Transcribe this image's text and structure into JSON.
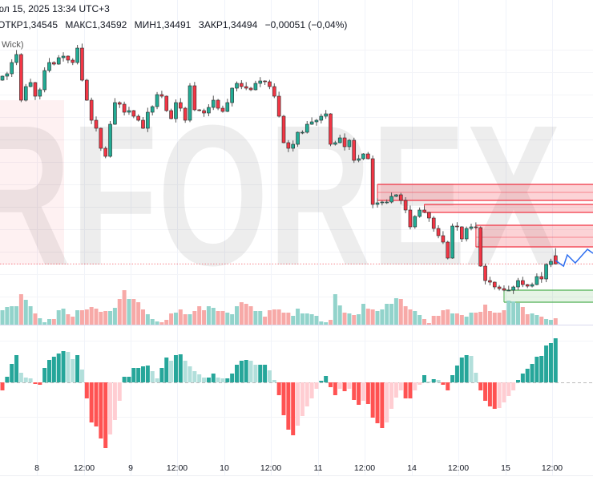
{
  "header": {
    "datetime": "юл 15, 2025 13:34 UTC+3",
    "ohlc": {
      "open": "ОТКР1,34545",
      "high": "МАКС1,34592",
      "low": "МИН1,34491",
      "close": "ЗАКР1,34494",
      "change": "−0,00051 (−0,04%)"
    },
    "indicator_label": "Wick)"
  },
  "watermark": "RFOREX",
  "colors": {
    "up": "#22ab94",
    "down": "#f23645",
    "vol_up": "#92d3cb",
    "vol_down": "#f7a9a7",
    "osc_up_strong": "#26a69a",
    "osc_up_weak": "#b2dfdb",
    "osc_down_strong": "#ff5252",
    "osc_down_weak": "#ffcdd2",
    "zone_supply": "#f23645",
    "zone_demand": "#4caf50",
    "forecast": "#2f6ff0"
  },
  "x_axis": {
    "labels": [
      "8",
      "12:00",
      "9",
      "12:00",
      "10",
      "12:00",
      "11",
      "12:00",
      "14",
      "12:00",
      "15",
      "12:00"
    ]
  },
  "chart_data": {
    "type": "candlestick",
    "first_open": 1.3564,
    "last_candle": {
      "open": 1.34545,
      "high": 1.34592,
      "low": 1.34491,
      "close": 1.34494
    },
    "current_price": 1.34494,
    "closes": [
      1.35665,
      1.3568,
      1.3575,
      1.358,
      1.35515,
      1.356,
      1.35625,
      1.3554,
      1.3558,
      1.357,
      1.3575,
      1.3574,
      1.3578,
      1.3579,
      1.35765,
      1.3575,
      1.3584,
      1.3564,
      1.35515,
      1.3539,
      1.3534,
      1.35215,
      1.35165,
      1.35365,
      1.355,
      1.3549,
      1.3544,
      1.3545,
      1.35415,
      1.3539,
      1.3534,
      1.3544,
      1.35475,
      1.3555,
      1.3554,
      1.3545,
      1.354,
      1.355,
      1.35465,
      1.3539,
      1.35605,
      1.35455,
      1.3545,
      1.35435,
      1.3547,
      1.35515,
      1.35465,
      1.35445,
      1.355,
      1.3559,
      1.3562,
      1.356,
      1.3559,
      1.3558,
      1.3562,
      1.35635,
      1.3563,
      1.356,
      1.3554,
      1.35415,
      1.3525,
      1.35215,
      1.3524,
      1.35315,
      1.35315,
      1.35365,
      1.3538,
      1.3539,
      1.35415,
      1.3543,
      1.3524,
      1.3525,
      1.3528,
      1.35225,
      1.35265,
      1.3514,
      1.3515,
      1.3518,
      1.3515,
      1.34865,
      1.34875,
      1.3488,
      1.3488,
      1.34915,
      1.34925,
      1.3489,
      1.3483,
      1.34725,
      1.3479,
      1.3483,
      1.34815,
      1.3478,
      1.34715,
      1.3467,
      1.3463,
      1.3453,
      1.3473,
      1.34725,
      1.3465,
      1.34715,
      1.34725,
      1.3472,
      1.3448,
      1.3439,
      1.3438,
      1.3435,
      1.3434,
      1.3433,
      1.3433,
      1.3435,
      1.3439,
      1.34365,
      1.34355,
      1.34365,
      1.34415,
      1.344,
      1.3449,
      1.3451,
      1.34494
    ],
    "volume": [
      18,
      22,
      23,
      23,
      38,
      31,
      23,
      14,
      8,
      3,
      7,
      7,
      18,
      20,
      13,
      10,
      18,
      18,
      19,
      22,
      20,
      16,
      17,
      17,
      21,
      32,
      43,
      32,
      32,
      28,
      19,
      13,
      7,
      4,
      3,
      6,
      14,
      15,
      19,
      13,
      13,
      17,
      23,
      18,
      23,
      21,
      17,
      17,
      15,
      13,
      23,
      28,
      26,
      23,
      17,
      17,
      10,
      18,
      19,
      19,
      15,
      15,
      11,
      20,
      14,
      14,
      13,
      11,
      4,
      3,
      6,
      38,
      24,
      15,
      14,
      12,
      13,
      26,
      20,
      19,
      17,
      19,
      26,
      26,
      33,
      32,
      23,
      19,
      17,
      12,
      7,
      2,
      11,
      11,
      18,
      19,
      14,
      14,
      12,
      10,
      15,
      15,
      16,
      25,
      17,
      15,
      15,
      18,
      30,
      29,
      27,
      22,
      13,
      14,
      12,
      10,
      7,
      6,
      8
    ],
    "oscillator": [
      -10,
      7,
      23,
      34,
      12,
      6,
      5,
      -2,
      -3,
      18,
      28,
      32,
      36,
      39,
      38,
      29,
      34,
      16,
      -20,
      -50,
      -55,
      -70,
      -82,
      -65,
      -47,
      -23,
      7,
      7,
      18,
      18,
      20,
      21,
      14,
      5,
      18,
      31,
      27,
      34,
      35,
      27,
      20,
      14,
      10,
      6,
      6,
      11,
      6,
      5,
      5,
      11,
      22,
      27,
      28,
      27,
      22,
      22,
      22,
      15,
      3,
      -16,
      -41,
      -59,
      -66,
      -54,
      -42,
      -30,
      -20,
      -8,
      2,
      8,
      -6,
      -16,
      -8,
      -11,
      -8,
      -22,
      -28,
      -23,
      -27,
      -44,
      -51,
      -57,
      -50,
      -33,
      -19,
      -10,
      -20,
      -20,
      -10,
      -3,
      9,
      1,
      4,
      3,
      -3,
      -10,
      9,
      21,
      31,
      34,
      33,
      12,
      -10,
      -23,
      -30,
      -33,
      -32,
      -25,
      -17,
      -10,
      3,
      11,
      17,
      23,
      32,
      33,
      46,
      49,
      55
    ],
    "zones": [
      {
        "kind": "supply",
        "start_bar": 80,
        "top": 1.3499,
        "mid": 1.3494,
        "bottom": 1.3489
      },
      {
        "kind": "supply",
        "start_bar": 90,
        "top": 1.34865,
        "bottom": 1.34815
      },
      {
        "kind": "supply",
        "start_bar": 101,
        "top": 1.34735,
        "mid": 1.3466,
        "bottom": 1.346
      },
      {
        "kind": "demand",
        "start_bar": 107,
        "top": 1.3433,
        "bottom": 1.34255
      }
    ],
    "forecast": [
      [
        118,
        1.34515
      ],
      [
        119.7,
        1.3448
      ],
      [
        120.5,
        1.3455
      ],
      [
        122.2,
        1.345
      ],
      [
        124.8,
        1.34585
      ],
      [
        126,
        1.3456
      ]
    ]
  }
}
